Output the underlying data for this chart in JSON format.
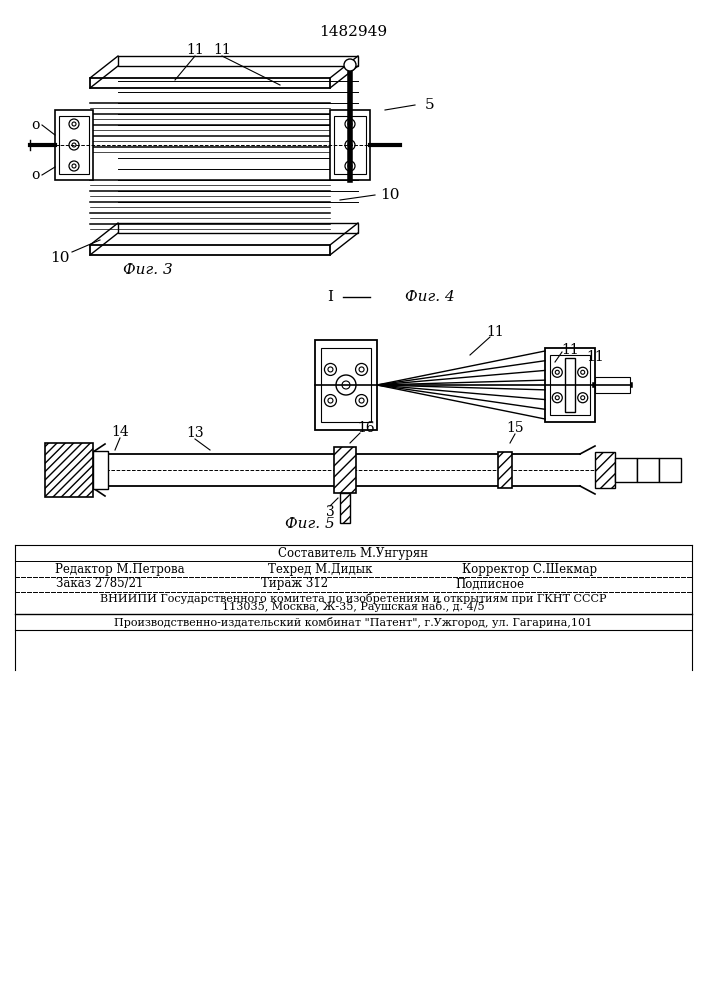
{
  "patent_number": "1482949",
  "bg_color": "#ffffff",
  "line_color": "#000000",
  "fig3_label": "Фиг. 3",
  "fig4_label": "Фиг. 4",
  "fig5_label": "Фиг. 5",
  "footer": {
    "sestavitel": "Составитель М.Унгурян",
    "redaktor": "Редактор М.Петрова",
    "tehred": "Техред М.Дидык",
    "korrektor": "Корректор С.Шекмар",
    "zakaz": "Заказ 2785/21",
    "tirazh": "Тираж 312",
    "podpisnoe": "Подписное",
    "vniipи_line1": "ВНИИПИ Государственного комитета по изобретениям и открытиям при ГКНТ СССР",
    "vniipи_line2": "113035, Москва, Ж-35, Раушская наб., д. 4/5",
    "publisher": "Производственно-издательский комбинат \"Патент\", г.Ужгород, ул. Гагарина,101"
  }
}
